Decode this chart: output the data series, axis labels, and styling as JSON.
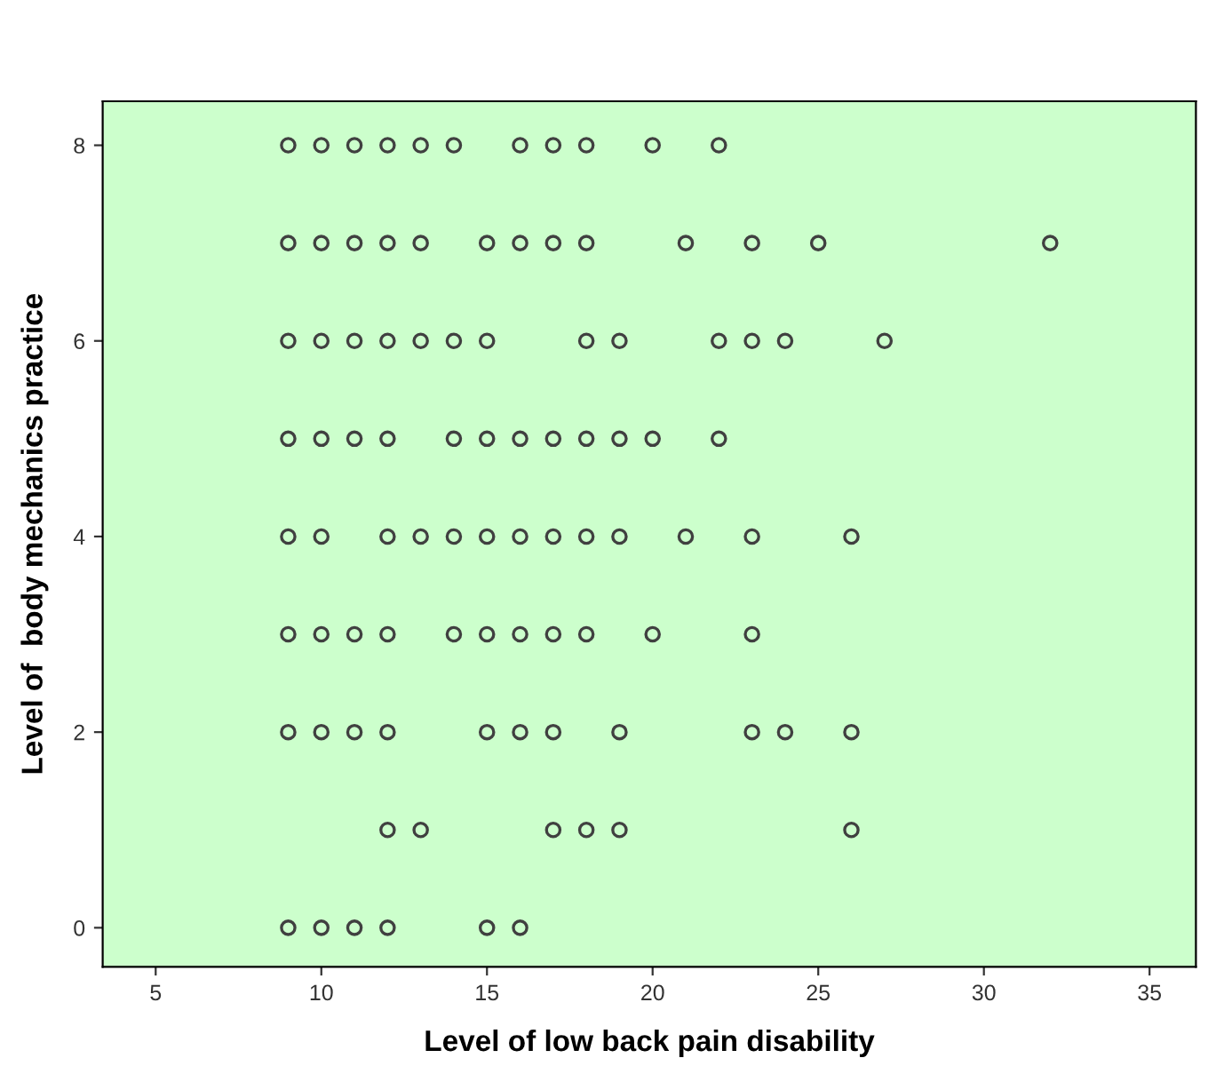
{
  "chart_data": {
    "type": "scatter",
    "xlabel": "Level of low back pain disability",
    "ylabel": "Level of  body mechanics practice",
    "x": [
      9,
      10,
      11,
      12,
      13,
      14,
      16,
      17,
      18,
      20,
      22,
      9,
      10,
      11,
      12,
      13,
      15,
      16,
      17,
      18,
      21,
      23,
      25,
      32,
      9,
      10,
      11,
      12,
      13,
      14,
      15,
      18,
      19,
      22,
      23,
      24,
      27,
      9,
      10,
      11,
      12,
      14,
      15,
      16,
      17,
      18,
      19,
      20,
      22,
      9,
      10,
      12,
      13,
      14,
      15,
      16,
      17,
      18,
      19,
      21,
      23,
      26,
      9,
      10,
      11,
      12,
      14,
      15,
      16,
      17,
      18,
      20,
      23,
      9,
      10,
      11,
      12,
      15,
      16,
      17,
      19,
      23,
      24,
      26,
      12,
      13,
      17,
      18,
      19,
      26,
      9,
      10,
      11,
      12,
      15,
      16
    ],
    "series": [
      {
        "color": "#404040",
        "values": [
          8,
          8,
          8,
          8,
          8,
          8,
          8,
          8,
          8,
          8,
          8,
          7,
          7,
          7,
          7,
          7,
          7,
          7,
          7,
          7,
          7,
          7,
          7,
          7,
          6,
          6,
          6,
          6,
          6,
          6,
          6,
          6,
          6,
          6,
          6,
          6,
          6,
          5,
          5,
          5,
          5,
          5,
          5,
          5,
          5,
          5,
          5,
          5,
          5,
          4,
          4,
          4,
          4,
          4,
          4,
          4,
          4,
          4,
          4,
          4,
          4,
          4,
          3,
          3,
          3,
          3,
          3,
          3,
          3,
          3,
          3,
          3,
          3,
          2,
          2,
          2,
          2,
          2,
          2,
          2,
          2,
          2,
          2,
          2,
          1,
          1,
          1,
          1,
          1,
          1,
          0,
          0,
          0,
          0,
          0,
          0
        ]
      }
    ],
    "marker": "circle",
    "xlim": [
      3.4,
      36.4
    ],
    "ylim": [
      -0.4,
      8.45
    ],
    "xticks": [
      5,
      10,
      15,
      20,
      25,
      30,
      35
    ],
    "yticks": [
      0,
      2,
      4,
      6,
      8
    ],
    "grid": false
  }
}
